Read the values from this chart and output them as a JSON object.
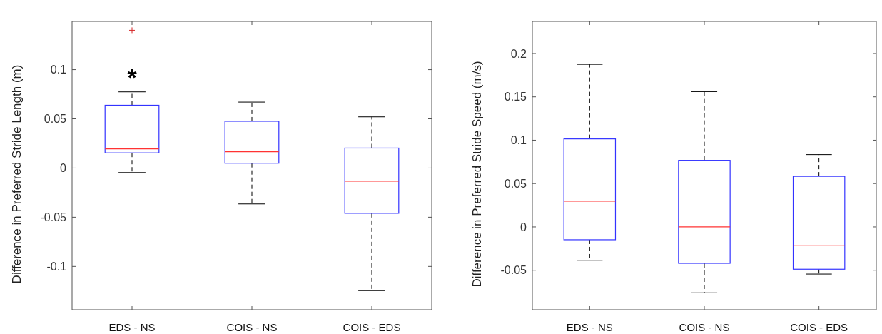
{
  "chart_data": [
    {
      "type": "box",
      "ylabel": "Difference in Preferred Stride Length (m)",
      "categories": [
        "EDS - NS",
        "COIS - NS",
        "COIS - EDS"
      ],
      "color": "#3333ff",
      "line_style": "dashed",
      "marker": "cross",
      "ylim": [
        -0.144,
        0.149
      ],
      "yticks": [
        -0.1,
        -0.05,
        0,
        0.05,
        0.1
      ],
      "grid": false,
      "legend": false,
      "boxes": [
        {
          "low": -0.0046,
          "q1": 0.0154,
          "median": 0.0194,
          "q3": 0.0638,
          "high": 0.0774,
          "outliers": [
            0.14
          ]
        },
        {
          "low": -0.0365,
          "q1": 0.0049,
          "median": 0.0165,
          "q3": 0.0475,
          "high": 0.067
        },
        {
          "low": -0.1246,
          "q1": -0.046,
          "median": -0.0133,
          "q3": 0.0203,
          "high": 0.052
        }
      ],
      "annotations": [
        "*"
      ]
    },
    {
      "type": "box",
      "ylabel": "Difference in Preferred Stride Speed (m/s)",
      "categories": [
        "EDS - NS",
        "COIS - NS",
        "COIS - EDS"
      ],
      "color": "#3333ff",
      "line_style": "dashed",
      "ylim": [
        -0.0955,
        0.237
      ],
      "yticks": [
        -0.05,
        0,
        0.05,
        0.1,
        0.15,
        0.2
      ],
      "grid": false,
      "legend": false,
      "boxes": [
        {
          "low": -0.0385,
          "q1": -0.0148,
          "median": 0.0297,
          "q3": 0.1015,
          "high": 0.1875
        },
        {
          "low": -0.076,
          "q1": -0.042,
          "median": 0,
          "q3": 0.0768,
          "high": 0.156
        },
        {
          "low": -0.0544,
          "q1": -0.0488,
          "median": -0.0217,
          "q3": 0.0583,
          "high": 0.0834
        }
      ]
    }
  ]
}
